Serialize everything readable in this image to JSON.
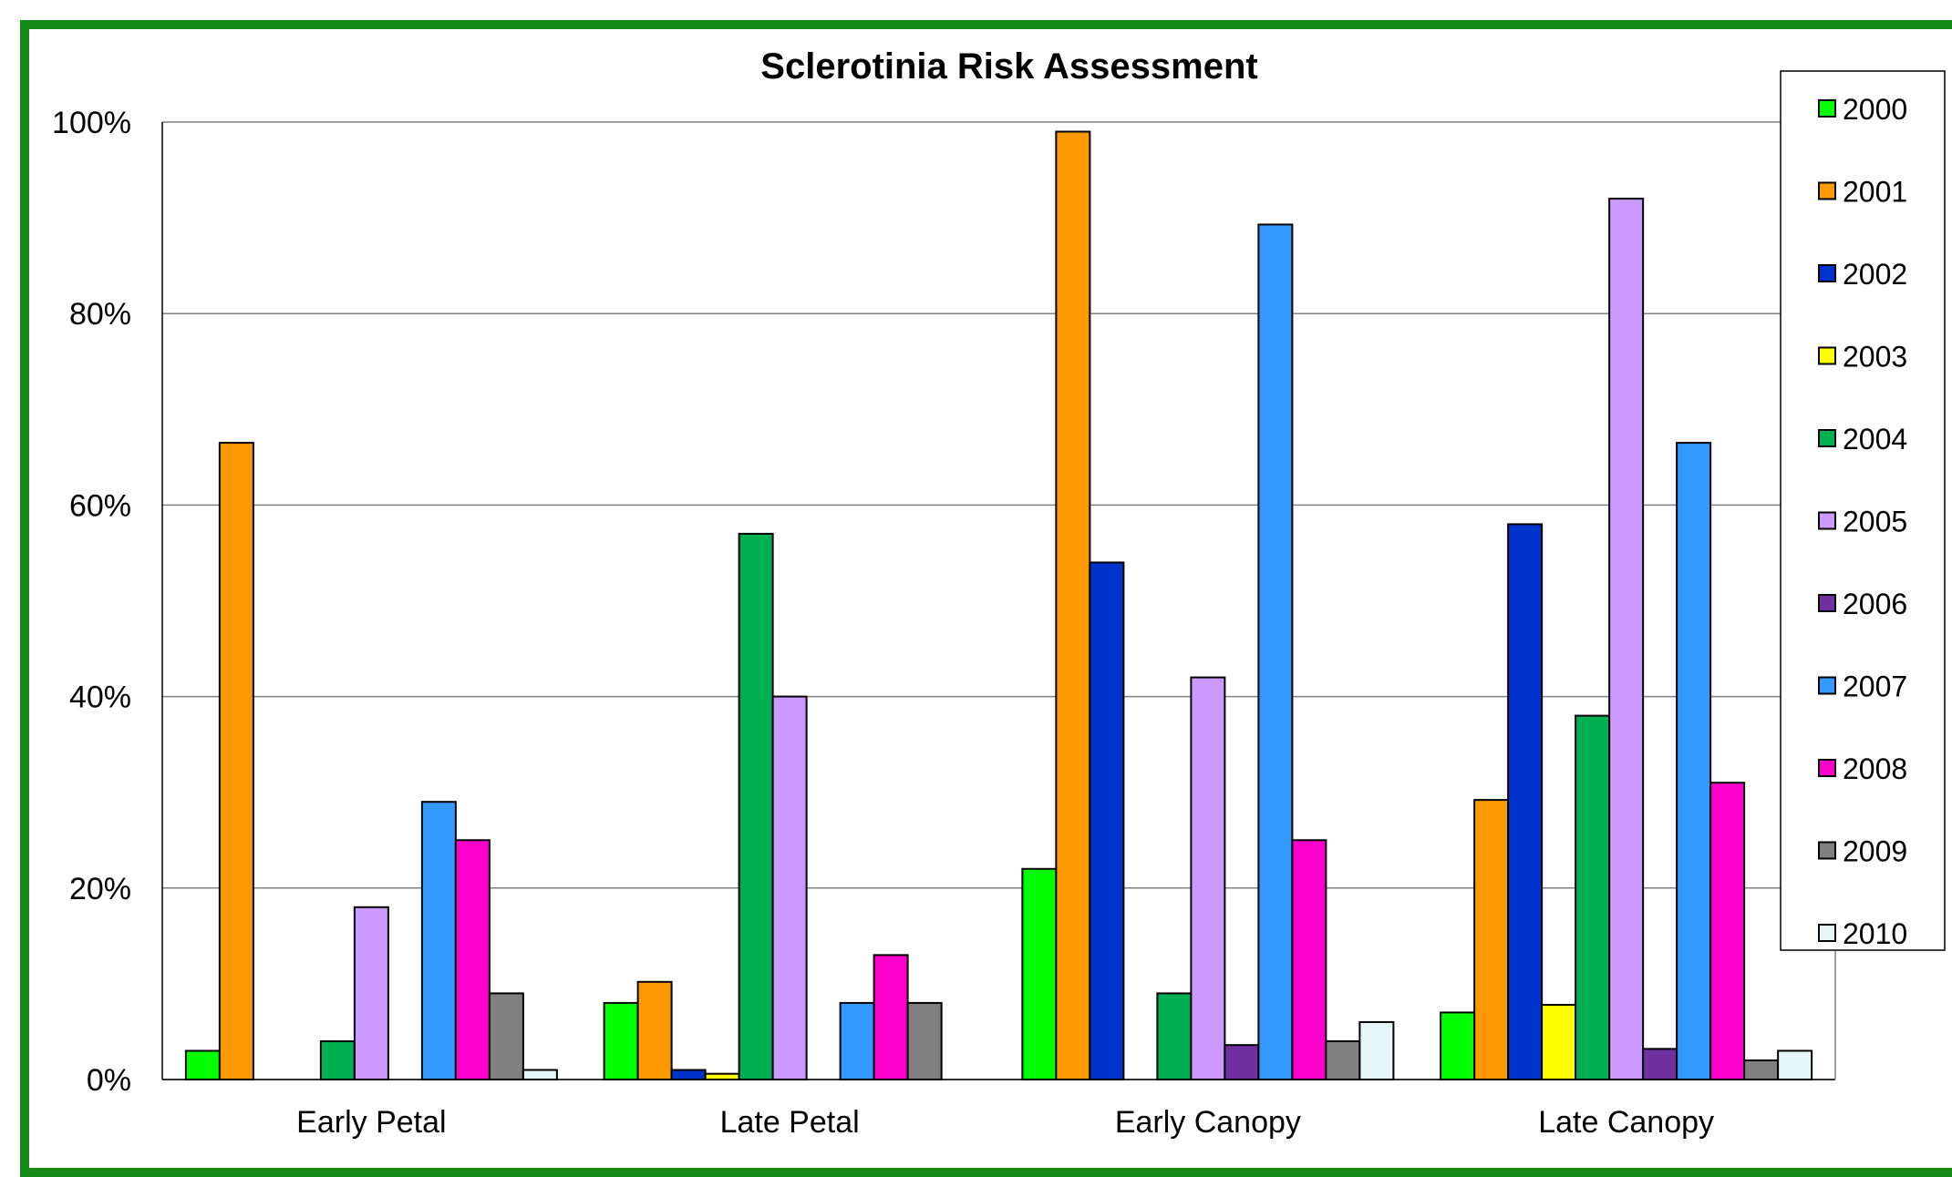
{
  "chart_data": {
    "type": "bar",
    "title": "Sclerotinia Risk Assessment",
    "categories": [
      "Early Petal",
      "Late Petal",
      "Early Canopy",
      "Late Canopy"
    ],
    "y_ticks": [
      "0%",
      "20%",
      "40%",
      "60%",
      "80%",
      "100%"
    ],
    "ylim": [
      0,
      100
    ],
    "grid": true,
    "legend_position": "right",
    "frame_color": "#168a16",
    "series": [
      {
        "name": "2000",
        "color": "#00ff00",
        "values": [
          3,
          8,
          22,
          7
        ]
      },
      {
        "name": "2001",
        "color": "#ff9900",
        "values": [
          66.5,
          10.2,
          99,
          29.2
        ]
      },
      {
        "name": "2002",
        "color": "#0033cc",
        "values": [
          null,
          1,
          54,
          58
        ]
      },
      {
        "name": "2003",
        "color": "#ffff00",
        "values": [
          null,
          0.6,
          null,
          7.8
        ]
      },
      {
        "name": "2004",
        "color": "#00b050",
        "values": [
          4,
          57,
          9,
          38
        ]
      },
      {
        "name": "2005",
        "color": "#cc99ff",
        "values": [
          18,
          40,
          42,
          92
        ]
      },
      {
        "name": "2006",
        "color": "#7030a0",
        "values": [
          null,
          null,
          3.6,
          3.2
        ]
      },
      {
        "name": "2007",
        "color": "#3399ff",
        "values": [
          29,
          8,
          89.3,
          66.5
        ]
      },
      {
        "name": "2008",
        "color": "#ff00cc",
        "values": [
          25,
          13,
          25,
          31
        ]
      },
      {
        "name": "2009",
        "color": "#808080",
        "values": [
          9,
          8,
          4,
          2
        ]
      },
      {
        "name": "2010",
        "color": "#e6f5f5",
        "values": [
          1,
          null,
          6,
          3
        ]
      }
    ]
  }
}
